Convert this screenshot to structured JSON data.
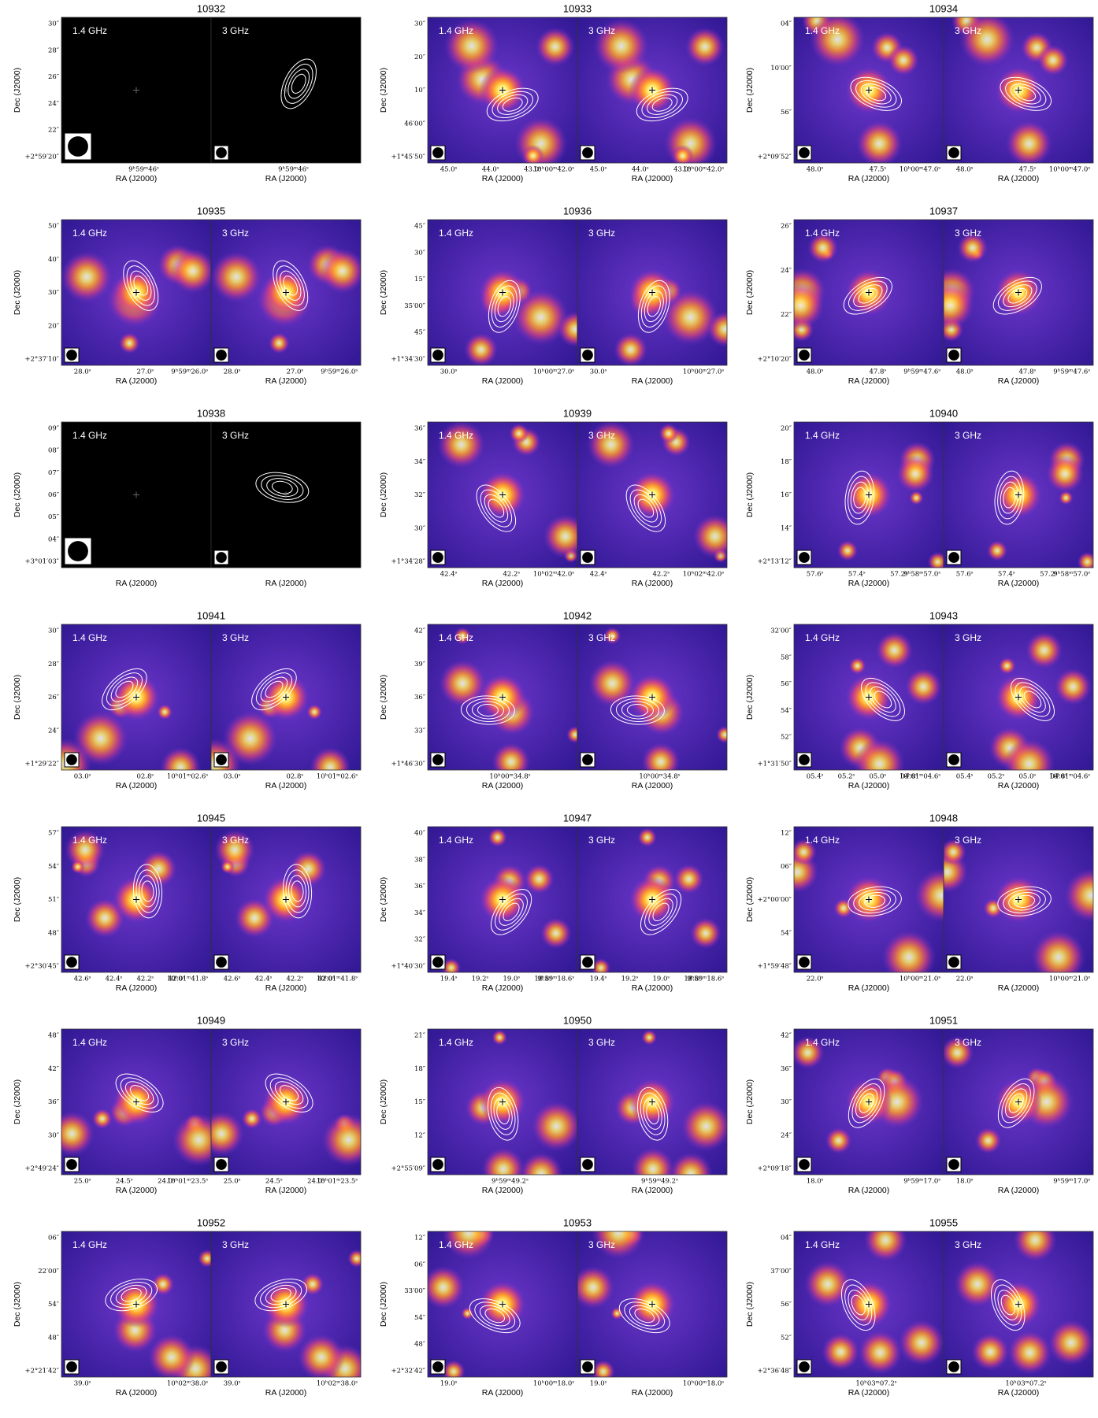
{
  "labels": {
    "low": "1.4 GHz",
    "high": "3 GHz",
    "ylabel": "Dec (J2000)",
    "xlabel": "RA (J2000)"
  },
  "panels": [
    {
      "title": "10932",
      "background": "black",
      "dec_ticks": [
        "30″",
        "28″",
        "26″",
        "24″",
        "22″",
        "+2°59′20″"
      ],
      "ra_ticks": [
        "9ʰ59ᵐ46ˢ"
      ]
    },
    {
      "title": "10933",
      "background": "color",
      "dec_ticks": [
        "30″",
        "20″",
        "10″",
        "46′00″",
        "+1°45′50″"
      ],
      "ra_ticks": [
        "45.0ˢ",
        "44.0ˢ",
        "43.0ˢ",
        "10ʰ00ᵐ42.0ˢ"
      ]
    },
    {
      "title": "10934",
      "background": "color",
      "dec_ticks": [
        "04″",
        "10′00″",
        "56″",
        "+2°09′52″"
      ],
      "ra_ticks": [
        "48.0ˢ",
        "47.5ˢ",
        "10ʰ00ᵐ47.0ˢ"
      ]
    },
    {
      "title": "10935",
      "background": "color",
      "dec_ticks": [
        "50″",
        "40″",
        "30″",
        "20″",
        "+2°37′10″"
      ],
      "ra_ticks": [
        "28.0ˢ",
        "27.0ˢ",
        "9ʰ59ᵐ26.0ˢ"
      ]
    },
    {
      "title": "10936",
      "background": "color",
      "dec_ticks": [
        "45″",
        "30″",
        "15″",
        "35′00″",
        "45″",
        "+1°34′30″"
      ],
      "ra_ticks": [
        "30.0ˢ",
        "10ʰ00ᵐ27.0ˢ"
      ]
    },
    {
      "title": "10937",
      "background": "color",
      "dec_ticks": [
        "26″",
        "24″",
        "22″",
        "+2°10′20″"
      ],
      "ra_ticks": [
        "48.0ˢ",
        "47.8ˢ",
        "9ʰ59ᵐ47.6ˢ"
      ]
    },
    {
      "title": "10938",
      "background": "black",
      "dec_ticks": [
        "09″",
        "08″",
        "07″",
        "06″",
        "05″",
        "04″",
        "+3°01′03″"
      ],
      "ra_ticks": []
    },
    {
      "title": "10939",
      "background": "color",
      "dec_ticks": [
        "36″",
        "34″",
        "32″",
        "30″",
        "+1°34′28″"
      ],
      "ra_ticks": [
        "42.4ˢ",
        "42.2ˢ",
        "10ʰ02ᵐ42.0ˢ"
      ]
    },
    {
      "title": "10940",
      "background": "color",
      "dec_ticks": [
        "20″",
        "18″",
        "16″",
        "14″",
        "+2°13′12″"
      ],
      "ra_ticks": [
        "57.6ˢ",
        "57.4ˢ",
        "57.2ˢ",
        "9ʰ58ᵐ57.0ˢ"
      ]
    },
    {
      "title": "10941",
      "background": "color",
      "dec_ticks": [
        "30″",
        "28″",
        "26″",
        "24″",
        "+1°29′22″"
      ],
      "ra_ticks": [
        "03.0ˢ",
        "02.8ˢ",
        "10ʰ01ᵐ02.6ˢ"
      ]
    },
    {
      "title": "10942",
      "background": "color",
      "dec_ticks": [
        "42″",
        "39″",
        "36″",
        "33″",
        "+1°46′30″"
      ],
      "ra_ticks": [
        "10ʰ00ᵐ34.8ˢ"
      ]
    },
    {
      "title": "10943",
      "background": "color",
      "dec_ticks": [
        "32′00″",
        "58″",
        "56″",
        "54″",
        "52″",
        "+1°31′50″"
      ],
      "ra_ticks": [
        "05.4ˢ",
        "05.2ˢ",
        "05.0ˢ",
        "04.8ˢ",
        "10ʰ01ᵐ04.6ˢ"
      ]
    },
    {
      "title": "10945",
      "background": "color",
      "dec_ticks": [
        "57″",
        "54″",
        "51″",
        "48″",
        "+2°30′45″"
      ],
      "ra_ticks": [
        "42.6ˢ",
        "42.4ˢ",
        "42.2ˢ",
        "42.0ˢ",
        "10ʰ01ᵐ41.8ˢ"
      ]
    },
    {
      "title": "10947",
      "background": "color",
      "dec_ticks": [
        "40″",
        "38″",
        "36″",
        "34″",
        "32″",
        "+1°40′30″"
      ],
      "ra_ticks": [
        "19.4ˢ",
        "19.2ˢ",
        "19.0ˢ",
        "18.8ˢ",
        "9ʰ59ᵐ18.6ˢ"
      ]
    },
    {
      "title": "10948",
      "background": "color",
      "dec_ticks": [
        "12″",
        "06″",
        "+2°00′00″",
        "54″",
        "+1°59′48″"
      ],
      "ra_ticks": [
        "22.0ˢ",
        "10ʰ00ᵐ21.0ˢ"
      ]
    },
    {
      "title": "10949",
      "background": "color",
      "dec_ticks": [
        "48″",
        "42″",
        "36″",
        "30″",
        "+2°49′24″"
      ],
      "ra_ticks": [
        "25.0ˢ",
        "24.5ˢ",
        "24.0ˢ",
        "10ʰ01ᵐ23.5ˢ"
      ]
    },
    {
      "title": "10950",
      "background": "color",
      "dec_ticks": [
        "21″",
        "18″",
        "15″",
        "12″",
        "+2°55′09″"
      ],
      "ra_ticks": [
        "9ʰ59ᵐ49.2ˢ"
      ]
    },
    {
      "title": "10951",
      "background": "color",
      "dec_ticks": [
        "42″",
        "36″",
        "30″",
        "24″",
        "+2°09′18″"
      ],
      "ra_ticks": [
        "18.0ˢ",
        "9ʰ59ᵐ17.0ˢ"
      ]
    },
    {
      "title": "10952",
      "background": "color",
      "dec_ticks": [
        "06″",
        "22′00″",
        "54″",
        "48″",
        "+2°21′42″"
      ],
      "ra_ticks": [
        "39.0ˢ",
        "10ʰ02ᵐ38.0ˢ"
      ]
    },
    {
      "title": "10953",
      "background": "color",
      "dec_ticks": [
        "12″",
        "06″",
        "33′00″",
        "54″",
        "48″",
        "+2°32′42″"
      ],
      "ra_ticks": [
        "19.0ˢ",
        "10ʰ00ᵐ18.0ˢ"
      ]
    },
    {
      "title": "10955",
      "background": "color",
      "dec_ticks": [
        "04″",
        "37′00″",
        "56″",
        "52″",
        "+2°36′48″"
      ],
      "ra_ticks": [
        "10ʰ03ᵐ07.2ˢ"
      ]
    }
  ]
}
